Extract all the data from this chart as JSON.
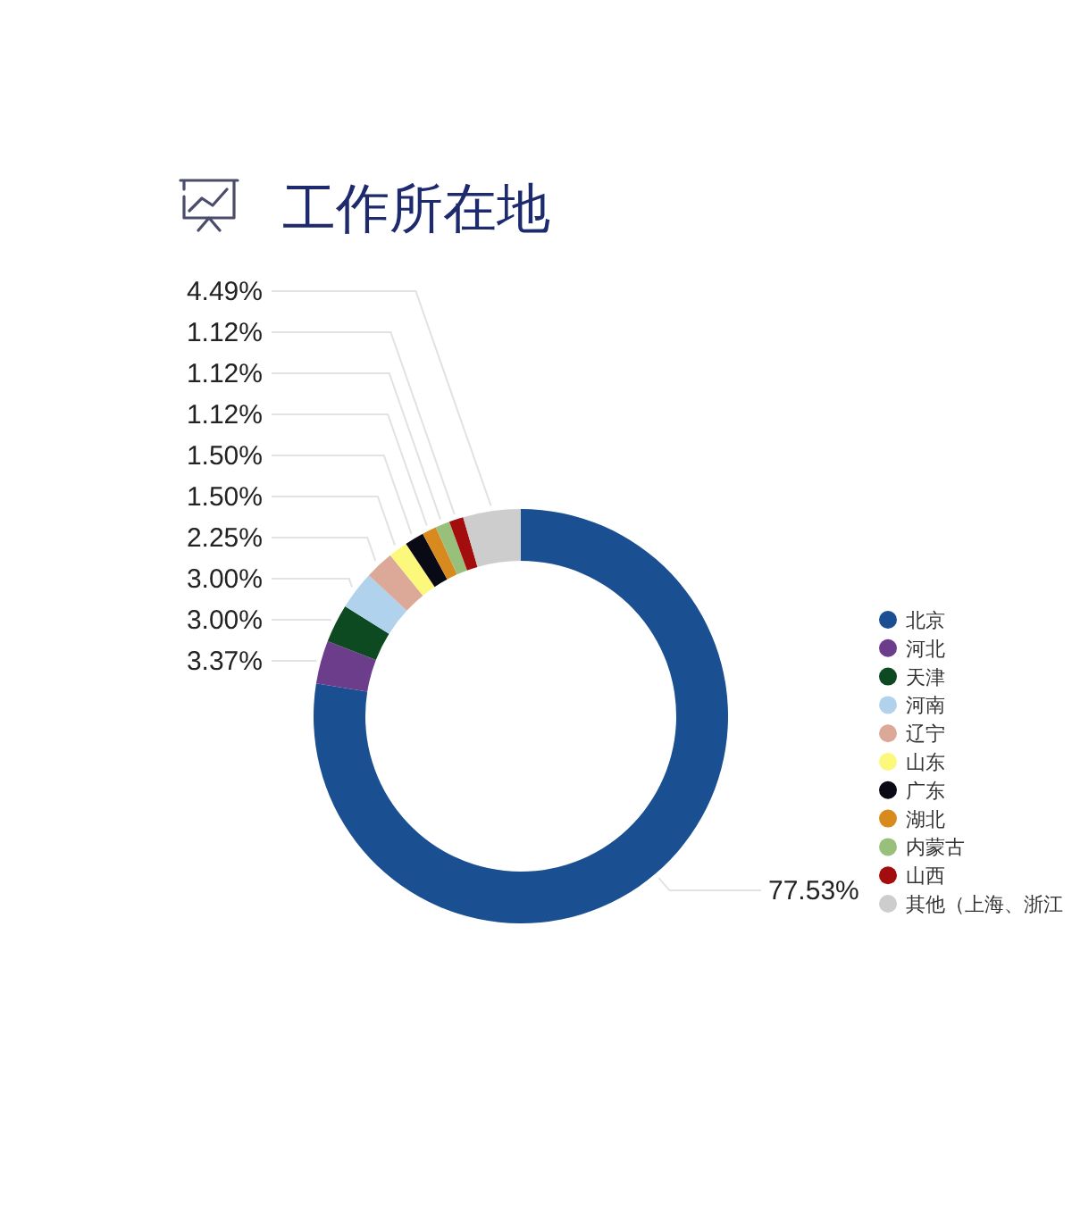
{
  "chart_data": {
    "type": "donut",
    "title": "工作所在地",
    "categories": [
      "北京",
      "河北",
      "天津",
      "河南",
      "辽宁",
      "山东",
      "广东",
      "湖北",
      "内蒙古",
      "山西",
      "其他（上海、浙江"
    ],
    "values": [
      77.53,
      3.37,
      3.0,
      3.0,
      2.25,
      1.5,
      1.5,
      1.12,
      1.12,
      1.12,
      4.49
    ],
    "colors": [
      "#1a4f92",
      "#6c3d8b",
      "#0d4a22",
      "#b0d2ec",
      "#dca898",
      "#fbf87c",
      "#0a0a16",
      "#d98a1f",
      "#98c07b",
      "#a30d0d",
      "#cdcdcd"
    ],
    "value_labels": [
      "77.53%",
      "3.37%",
      "3.00%",
      "3.00%",
      "2.25%",
      "1.50%",
      "1.50%",
      "1.12%",
      "1.12%",
      "1.12%",
      "4.49%"
    ],
    "legend": "right"
  }
}
